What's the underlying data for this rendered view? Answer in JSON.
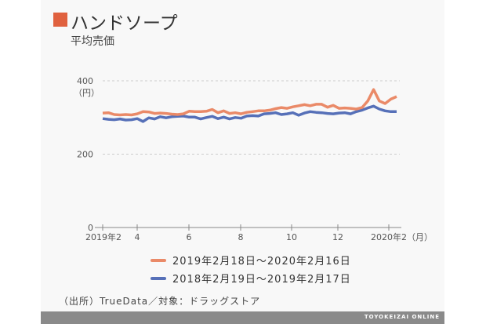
{
  "title": "ハンドソープ",
  "subtitle": "平均売価",
  "colors": {
    "accent": "#e0613f",
    "orange": "#ea8a68",
    "blue": "#5670b8"
  },
  "source": "（出所）TrueData／対象：ドラッグストア",
  "brand": "TOYOKEIZAI ONLINE",
  "chart_data": {
    "type": "line",
    "ylabel": "（円）",
    "ylim": [
      0,
      400
    ],
    "yticks": [
      "0",
      "200",
      "400"
    ],
    "xticks": [
      "2019年2",
      "4",
      "6",
      "8",
      "10",
      "12",
      "2020年2（月）"
    ],
    "grid": true,
    "legend": "bottom",
    "series": [
      {
        "name": "2019年2月18日～2020年2月16日",
        "color": "#ea8a68",
        "values": [
          312,
          313,
          308,
          307,
          308,
          307,
          310,
          316,
          315,
          311,
          312,
          311,
          309,
          308,
          310,
          317,
          316,
          316,
          317,
          322,
          313,
          318,
          311,
          313,
          310,
          314,
          316,
          318,
          318,
          320,
          324,
          327,
          325,
          329,
          332,
          335,
          332,
          336,
          336,
          328,
          333,
          325,
          326,
          325,
          323,
          327,
          345,
          376,
          345,
          338,
          350,
          357
        ]
      },
      {
        "name": "2018年2月19日～2019年2月17日",
        "color": "#5670b8",
        "values": [
          297,
          295,
          294,
          296,
          293,
          294,
          297,
          289,
          299,
          296,
          302,
          299,
          302,
          303,
          304,
          301,
          301,
          296,
          300,
          303,
          297,
          301,
          296,
          300,
          298,
          304,
          305,
          304,
          310,
          311,
          313,
          308,
          310,
          313,
          306,
          312,
          316,
          314,
          313,
          311,
          310,
          312,
          313,
          310,
          316,
          320,
          326,
          331,
          323,
          318,
          316,
          316
        ]
      }
    ]
  }
}
